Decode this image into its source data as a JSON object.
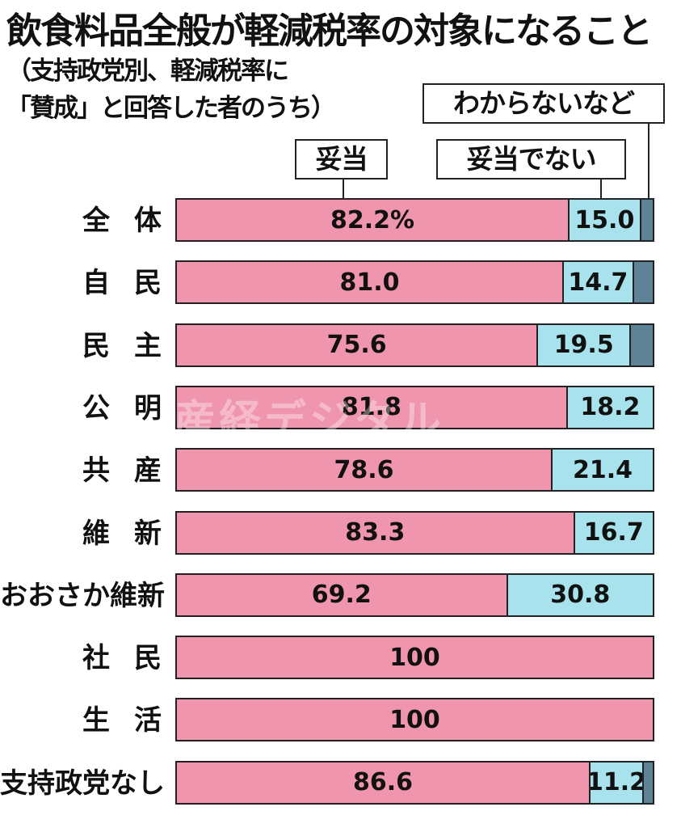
{
  "header": {
    "title": "飲食料品全般が軽減税率の対象になること",
    "subtitle_line1": "（支持政党別、軽減税率に",
    "subtitle_line2": "「賛成」と回答した者のうち）"
  },
  "legend": {
    "agree": "妥当",
    "disagree": "妥当でない",
    "unknown": "わからないなど"
  },
  "colors": {
    "agree": "#F095AE",
    "disagree": "#A8E2EC",
    "unknown": "#5E8397",
    "border": "#222222"
  },
  "watermark": "産経デジタル",
  "chart_data": {
    "type": "bar",
    "orientation": "horizontal-stacked-100",
    "title": "飲食料品全般が軽減税率の対象になること",
    "subtitle": "（支持政党別、軽減税率に「賛成」と回答した者のうち）",
    "unit": "%",
    "categories": [
      "全　体",
      "自　民",
      "民　主",
      "公　明",
      "共　産",
      "維　新",
      "おおさか維新",
      "社　民",
      "生　活",
      "支持政党なし"
    ],
    "series": [
      {
        "name": "妥当",
        "values": [
          82.2,
          81.0,
          75.6,
          81.8,
          78.6,
          83.3,
          69.2,
          100,
          100,
          86.6
        ]
      },
      {
        "name": "妥当でない",
        "values": [
          15.0,
          14.7,
          19.5,
          18.2,
          21.4,
          16.7,
          30.8,
          0,
          0,
          11.2
        ]
      },
      {
        "name": "わからないなど",
        "values": [
          2.8,
          4.3,
          4.9,
          0,
          0,
          0,
          0,
          0,
          0,
          2.2
        ]
      }
    ],
    "value_labels": [
      [
        "82.2%",
        "15.0",
        ""
      ],
      [
        "81.0",
        "14.7",
        ""
      ],
      [
        "75.6",
        "19.5",
        ""
      ],
      [
        "81.8",
        "18.2",
        ""
      ],
      [
        "78.6",
        "21.4",
        ""
      ],
      [
        "83.3",
        "16.7",
        ""
      ],
      [
        "69.2",
        "30.8",
        ""
      ],
      [
        "100",
        "",
        ""
      ],
      [
        "100",
        "",
        ""
      ],
      [
        "86.6",
        "11.2",
        ""
      ]
    ],
    "xlim": [
      0,
      100
    ],
    "grid": false,
    "legend_position": "callouts above first bar"
  },
  "rows": [
    {
      "label": "全体",
      "spaced": true
    },
    {
      "label": "自民",
      "spaced": true
    },
    {
      "label": "民主",
      "spaced": true
    },
    {
      "label": "公明",
      "spaced": true
    },
    {
      "label": "共産",
      "spaced": true
    },
    {
      "label": "維新",
      "spaced": true
    },
    {
      "label": "おおさか維新",
      "spaced": false
    },
    {
      "label": "社民",
      "spaced": true
    },
    {
      "label": "生活",
      "spaced": true
    },
    {
      "label": "支持政党なし",
      "spaced": false
    }
  ]
}
